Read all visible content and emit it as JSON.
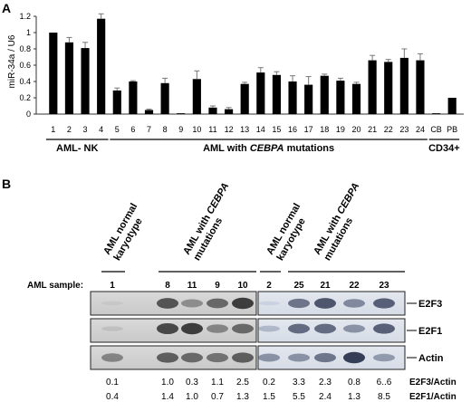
{
  "panel_a": {
    "label": "A",
    "chart_data": {
      "type": "bar",
      "ylabel": "miR-34a / U6",
      "ylim": [
        0,
        1.2
      ],
      "yticks": [
        "0",
        "0.2",
        "0.4",
        "0.6",
        "0.8",
        "1",
        "1.2"
      ],
      "grid": false,
      "categories": [
        "1",
        "2",
        "3",
        "4",
        "5",
        "6",
        "7",
        "8",
        "9",
        "10",
        "11",
        "12",
        "13",
        "14",
        "15",
        "16",
        "17",
        "18",
        "19",
        "20",
        "21",
        "22",
        "23",
        "24",
        "CB",
        "PB"
      ],
      "values": [
        1.0,
        0.88,
        0.81,
        1.17,
        0.29,
        0.4,
        0.05,
        0.38,
        0.01,
        0.43,
        0.08,
        0.06,
        0.37,
        0.51,
        0.48,
        0.4,
        0.36,
        0.47,
        0.41,
        0.37,
        0.66,
        0.64,
        0.69,
        0.66,
        0.01,
        0.2
      ],
      "errors": [
        0,
        0.06,
        0.07,
        0.06,
        0.03,
        0.01,
        0.01,
        0.06,
        0,
        0.1,
        0.02,
        0.02,
        0.02,
        0.06,
        0.04,
        0.07,
        0.1,
        0.02,
        0.03,
        0.02,
        0.06,
        0.03,
        0.11,
        0.08,
        0,
        0
      ],
      "groups": [
        {
          "label": "AML- NK",
          "from": 0,
          "to": 3
        },
        {
          "label_pre": "AML with ",
          "label_em": "CEBPA",
          "label_post": " mutations",
          "from": 4,
          "to": 23
        },
        {
          "label": "CD34+",
          "from": 24,
          "to": 25
        }
      ]
    }
  },
  "panel_b": {
    "label": "B",
    "row_title": "AML sample:",
    "group_headers": [
      {
        "lines": [
          "AML normal",
          "karyotype"
        ]
      },
      {
        "lines_pre": "AML with ",
        "lines_em": "CEBPA",
        "line2": "mutations"
      },
      {
        "lines": [
          "AML normal",
          "karyotype"
        ]
      },
      {
        "lines_pre": "AML with ",
        "lines_em": "CEBPA",
        "line2": "mutations"
      }
    ],
    "samples_left": [
      "1",
      "8",
      "11",
      "9",
      "10"
    ],
    "samples_right": [
      "2",
      "25",
      "21",
      "22",
      "23"
    ],
    "blots": [
      "E2F3",
      "E2F1",
      "Actin"
    ],
    "ratios": [
      {
        "label": "E2F3/Actin",
        "values": [
          "0.1",
          "1.0",
          "0.3",
          "1.1",
          "2.5",
          "0.2",
          "3.3",
          "2.3",
          "0.8",
          "6..6"
        ]
      },
      {
        "label": "E2F1/Actin",
        "values": [
          "0.4",
          "1.4",
          "1.0",
          "0.7",
          "1.3",
          "1.5",
          "5.5",
          "2.4",
          "1.3",
          "8.5"
        ]
      }
    ]
  }
}
